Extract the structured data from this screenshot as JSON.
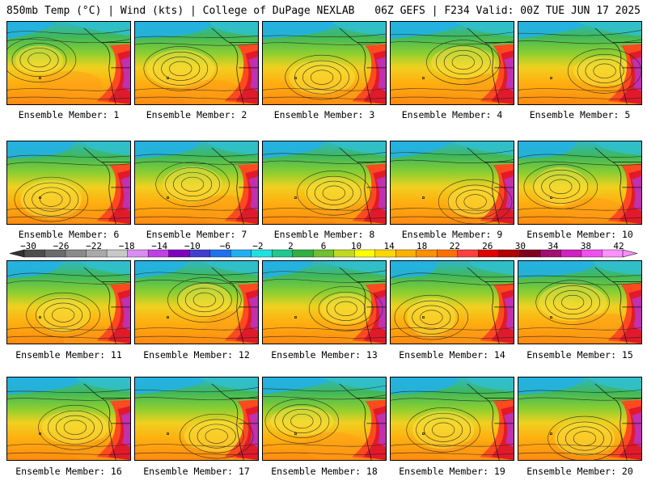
{
  "header": {
    "left": "850mb Temp (°C) | Wind (kts) | College of DuPage NEXLAB",
    "right": "06Z GEFS | F234 Valid: 00Z TUE JUN 17 2025"
  },
  "members": [
    "Ensemble Member: 1",
    "Ensemble Member: 2",
    "Ensemble Member: 3",
    "Ensemble Member: 4",
    "Ensemble Member: 5",
    "Ensemble Member: 6",
    "Ensemble Member: 7",
    "Ensemble Member: 8",
    "Ensemble Member: 9",
    "Ensemble Member: 10",
    "Ensemble Member: 11",
    "Ensemble Member: 12",
    "Ensemble Member: 13",
    "Ensemble Member: 14",
    "Ensemble Member: 15",
    "Ensemble Member: 16",
    "Ensemble Member: 17",
    "Ensemble Member: 18",
    "Ensemble Member: 19",
    "Ensemble Member: 20"
  ],
  "colorbar": {
    "labels": [
      "−30",
      "−26",
      "−22",
      "−18",
      "−14",
      "−10",
      "−6",
      "−2",
      "2",
      "6",
      "10",
      "14",
      "18",
      "22",
      "26",
      "30",
      "34",
      "38",
      "42"
    ],
    "colors": [
      "#4d4d4d",
      "#6b6b6b",
      "#8a8a8a",
      "#a9a9a9",
      "#c8c8c8",
      "#d98cf2",
      "#c040e6",
      "#8000c0",
      "#4040d0",
      "#2070f0",
      "#20b0f0",
      "#20e0e0",
      "#20c890",
      "#30b040",
      "#70c030",
      "#c0d820",
      "#ffff00",
      "#ffd700",
      "#ffb000",
      "#ff9000",
      "#ff7000",
      "#ff4040",
      "#e00000",
      "#b00000",
      "#800020",
      "#a01070",
      "#d020c0",
      "#f050f0",
      "#ff90ff"
    ]
  }
}
